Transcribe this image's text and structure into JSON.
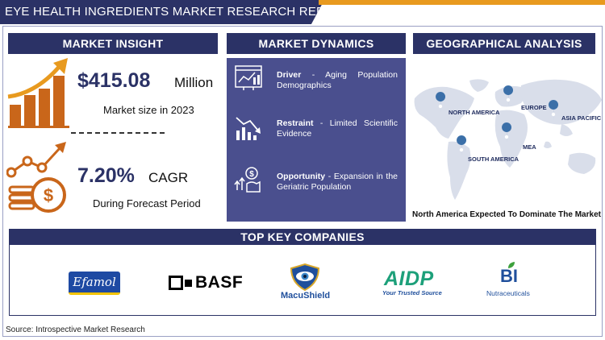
{
  "header": {
    "title": "EYE HEALTH INGREDIENTS MARKET RESEARCH REPORT"
  },
  "market_insight": {
    "heading": "MARKET INSIGHT",
    "market_size_value": "$415.08",
    "market_size_unit": "Million",
    "market_size_caption": "Market size in 2023",
    "cagr_value": "7.20%",
    "cagr_unit": "CAGR",
    "cagr_caption": "During Forecast Period"
  },
  "market_dynamics": {
    "heading": "MARKET DYNAMICS",
    "items": [
      {
        "label": "Driver",
        "text": " - Aging Population Demographics",
        "icon": "chart-dashboard-icon"
      },
      {
        "label": "Restraint",
        "text": " - Limited Scientific Evidence",
        "icon": "downtrend-chart-icon"
      },
      {
        "label": "Opportunity",
        "text": " - Expansion in the Geriatric Population",
        "icon": "growth-hand-icon"
      }
    ]
  },
  "geographical_analysis": {
    "heading": "GEOGRAPHICAL ANALYSIS",
    "regions": [
      "NORTH AMERICA",
      "EUROPE",
      "ASIA PACIFIC",
      "MEA",
      "SOUTH AMERICA"
    ],
    "caption": "North America Expected To Dominate The Market"
  },
  "companies": {
    "heading": "TOP KEY COMPANIES",
    "logos": {
      "efamol": "Efamol",
      "basf": "BASF",
      "macushield": "MacuShield",
      "aidp": "AIDP",
      "aidp_tagline": "Your Trusted Source",
      "bi": "BI",
      "bi_sub": "Nutraceuticals"
    }
  },
  "footer": {
    "source": "Source: Introspective Market Research"
  },
  "colors": {
    "navy": "#2b3266",
    "panel": "#4a4f8e",
    "orange": "#e89a1f"
  }
}
